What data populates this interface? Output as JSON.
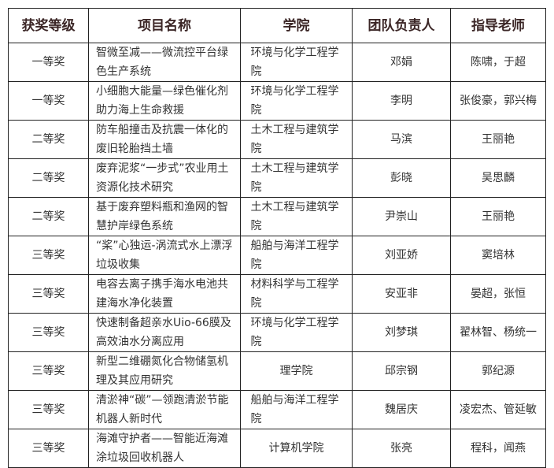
{
  "headers": [
    "获奖等级",
    "项目名称",
    "学院",
    "团队负责人",
    "指导老师"
  ],
  "rows": [
    {
      "award": "一等奖",
      "project": "智微至减——微流控平台绿色生产系统",
      "college": "环境与化学工程学院",
      "leader": "邓娟",
      "advisor": "陈啸，于超"
    },
    {
      "award": "一等奖",
      "project": "小细胞大能量—绿色催化剂助力海上生命救援",
      "college": "环境与化学工程学院",
      "leader": "李明",
      "advisor": "张俊豪，郭兴梅"
    },
    {
      "award": "二等奖",
      "project": "防车船撞击及抗震一体化的废旧轮胎挡土墙",
      "college": "土木工程与建筑学院",
      "leader": "马滨",
      "advisor": "王丽艳"
    },
    {
      "award": "二等奖",
      "project": "废弃泥浆“一步式”农业用土资源化技术研究",
      "college": "土木工程与建筑学院",
      "leader": "彭晓",
      "advisor": "吴思麟"
    },
    {
      "award": "二等奖",
      "project": "基于废弃塑料瓶和渔网的智慧护岸绿色系统",
      "college": "土木工程与建筑学院",
      "leader": "尹崇山",
      "advisor": "王丽艳"
    },
    {
      "award": "三等奖",
      "project": "“桨”心独运-涡流式水上漂浮垃圾收集",
      "college": "船舶与海洋工程学院",
      "leader": "刘亚娇",
      "advisor": "窦培林"
    },
    {
      "award": "三等奖",
      "project": "电容去离子携手海水电池共建海水净化装置",
      "college": "材料科学与工程学院",
      "leader": "安亚非",
      "advisor": "晏超，张恒"
    },
    {
      "award": "三等奖",
      "project": "快速制备超亲水Uio-66膜及高效油水分离应用",
      "college": "环境与化学工程学院",
      "leader": "刘梦琪",
      "advisor": "翟林智、杨统一"
    },
    {
      "award": "三等奖",
      "project": "新型二维硼氮化合物储氢机理及其应用研究",
      "college": "理学院",
      "leader": "邱宗钢",
      "advisor": "郭纪源"
    },
    {
      "award": "三等奖",
      "project": "清淤神“碳”—领跑清淤节能机器人新时代",
      "college": "船舶与海洋工程学院",
      "leader": "魏居庆",
      "advisor": "凌宏杰、管延敏"
    },
    {
      "award": "三等奖",
      "project": "海滩守护者——智能近海滩涂垃圾回收机器人",
      "college": "计算机学院",
      "leader": "张亮",
      "advisor": "程科，闻燕"
    }
  ]
}
